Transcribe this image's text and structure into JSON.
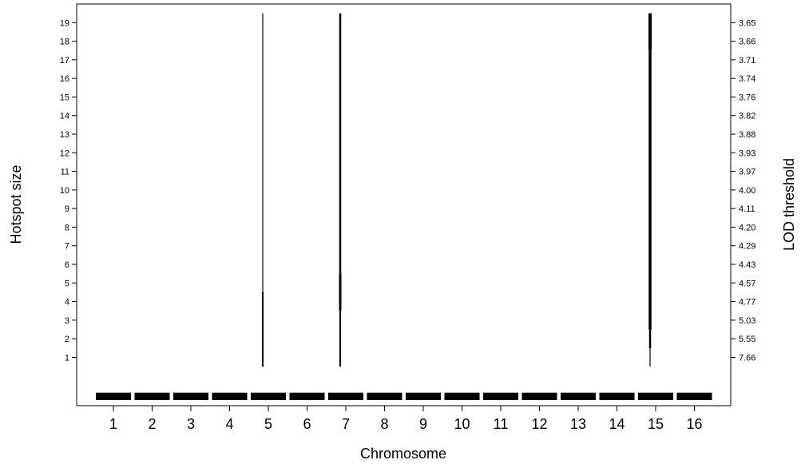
{
  "chart_data": {
    "type": "bar",
    "xlabel": "Chromosome",
    "ylabel": "Hotspot size",
    "y2label": "LOD threshold",
    "categories": [
      "1",
      "2",
      "3",
      "4",
      "5",
      "6",
      "7",
      "8",
      "9",
      "10",
      "11",
      "12",
      "13",
      "14",
      "15",
      "16"
    ],
    "y_ticks": [
      1,
      2,
      3,
      4,
      5,
      6,
      7,
      8,
      9,
      10,
      11,
      12,
      13,
      14,
      15,
      16,
      17,
      18,
      19
    ],
    "y2_ticks": [
      "7.66",
      "5.55",
      "5.03",
      "4.77",
      "4.57",
      "4.43",
      "4.29",
      "4.20",
      "4.11",
      "4.00",
      "3.97",
      "3.93",
      "3.88",
      "3.82",
      "3.76",
      "3.74",
      "3.71",
      "3.66",
      "3.65"
    ],
    "ylim": [
      -1.6,
      20.0
    ],
    "grid": false,
    "color": "#000000",
    "hotspots": [
      {
        "chromosome": "5",
        "segments": [
          {
            "y_start": 0.5,
            "y_end": 4.5,
            "width": 2
          },
          {
            "y_start": 4.5,
            "y_end": 19.5,
            "width": 1.2
          }
        ]
      },
      {
        "chromosome": "7",
        "segments": [
          {
            "y_start": 0.5,
            "y_end": 3.5,
            "width": 2
          },
          {
            "y_start": 3.5,
            "y_end": 5.5,
            "width": 3
          },
          {
            "y_start": 5.5,
            "y_end": 19.5,
            "width": 2.5
          }
        ]
      },
      {
        "chromosome": "15",
        "segments": [
          {
            "y_start": 0.5,
            "y_end": 1.5,
            "width": 1.2
          },
          {
            "y_start": 1.5,
            "y_end": 2.5,
            "width": 2.5
          },
          {
            "y_start": 2.5,
            "y_end": 17.5,
            "width": 3.5
          },
          {
            "y_start": 17.5,
            "y_end": 19.5,
            "width": 4
          }
        ]
      }
    ]
  }
}
